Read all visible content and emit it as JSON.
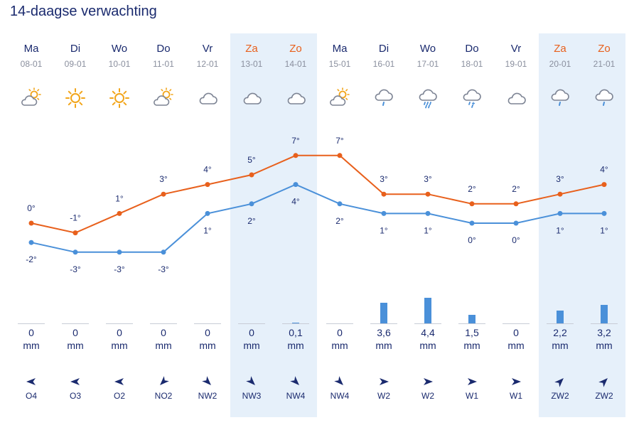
{
  "title": "14-daagse verwachting",
  "colors": {
    "max": "#e8601c",
    "min": "#4a90d9",
    "weekend": "#e6f0fa",
    "text": "#1a2a6e"
  },
  "chart_data": {
    "type": "line",
    "categories": [
      "08-01",
      "09-01",
      "10-01",
      "11-01",
      "12-01",
      "13-01",
      "14-01",
      "15-01",
      "16-01",
      "17-01",
      "18-01",
      "19-01",
      "20-01",
      "21-01"
    ],
    "days": [
      "Ma",
      "Di",
      "Wo",
      "Do",
      "Vr",
      "Za",
      "Zo",
      "Ma",
      "Di",
      "Wo",
      "Do",
      "Vr",
      "Za",
      "Zo"
    ],
    "weekend": [
      false,
      false,
      false,
      false,
      false,
      true,
      true,
      false,
      false,
      false,
      false,
      false,
      true,
      true
    ],
    "icons": [
      "partly-cloudy-icon",
      "sun-icon",
      "sun-icon",
      "partly-cloudy-icon",
      "cloud-icon",
      "cloud-icon",
      "cloud-icon",
      "partly-cloudy-icon",
      "cloud-drizzle-icon",
      "cloud-heavy-rain-icon",
      "cloud-sleet-icon",
      "cloud-icon",
      "cloud-drizzle-icon",
      "cloud-drizzle-icon"
    ],
    "series": [
      {
        "name": "max",
        "values": [
          0,
          -1,
          1,
          3,
          4,
          5,
          7,
          7,
          3,
          3,
          2,
          2,
          3,
          4
        ],
        "labels": [
          "0°",
          "-1°",
          "1°",
          "3°",
          "4°",
          "5°",
          "7°",
          "7°",
          "3°",
          "3°",
          "2°",
          "2°",
          "3°",
          "4°"
        ]
      },
      {
        "name": "min",
        "values": [
          -2,
          -3,
          -3,
          -3,
          1,
          2,
          4,
          2,
          1,
          1,
          0,
          0,
          1,
          1
        ],
        "labels": [
          "-2°",
          "-3°",
          "-3°",
          "-3°",
          "1°",
          "2°",
          "4°",
          "2°",
          "1°",
          "1°",
          "0°",
          "0°",
          "1°",
          "1°"
        ]
      }
    ],
    "precipitation": {
      "values": [
        0,
        0,
        0,
        0,
        0,
        0,
        0.1,
        0,
        3.6,
        4.4,
        1.5,
        0,
        2.2,
        3.2
      ],
      "labels": [
        "0",
        "0",
        "0",
        "0",
        "0",
        "0",
        "0,1",
        "0",
        "3,6",
        "4,4",
        "1,5",
        "0",
        "2,2",
        "3,2"
      ],
      "unit": "mm"
    },
    "wind": {
      "labels": [
        "O4",
        "O3",
        "O2",
        "NO2",
        "NW2",
        "NW3",
        "NW4",
        "NW4",
        "W2",
        "W2",
        "W1",
        "W1",
        "ZW2",
        "ZW2"
      ],
      "from_degrees": [
        90,
        90,
        90,
        45,
        315,
        315,
        315,
        315,
        270,
        270,
        270,
        270,
        225,
        225
      ]
    }
  }
}
